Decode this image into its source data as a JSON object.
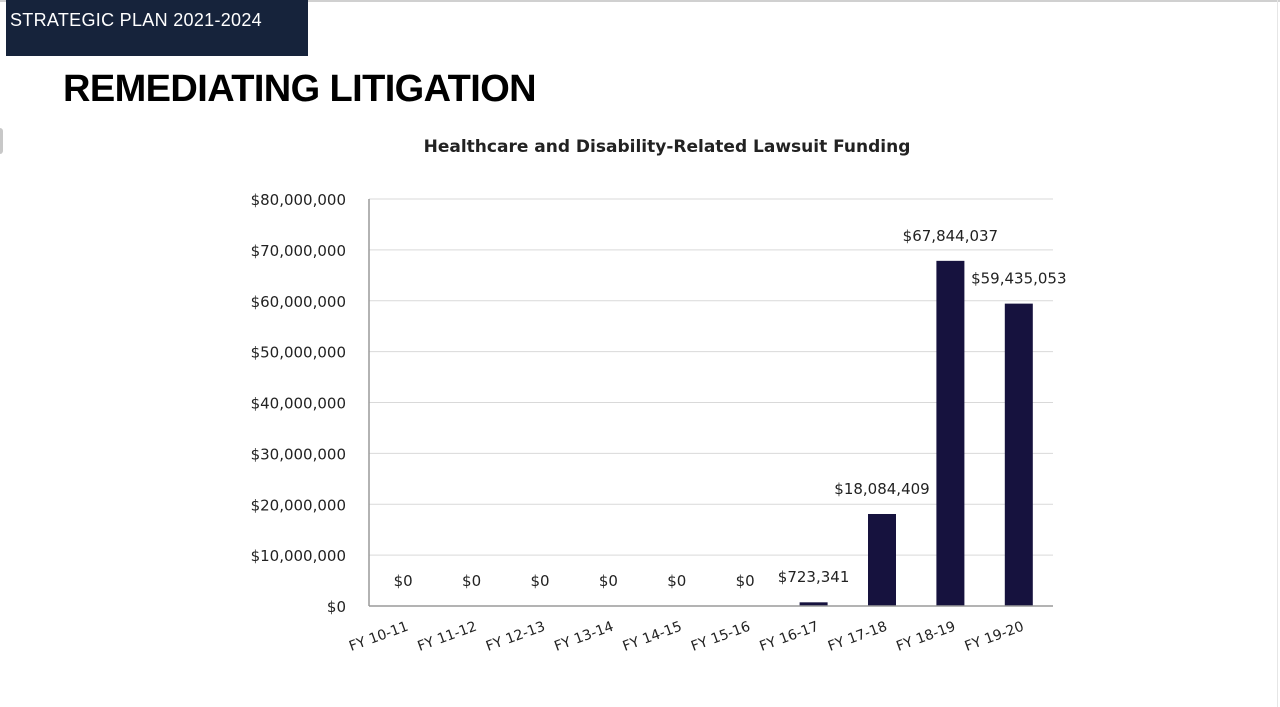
{
  "header": {
    "banner": "STRATEGIC PLAN 2021-2024",
    "title": "REMEDIATING LITIGATION"
  },
  "colors": {
    "banner_bg": "#16233b",
    "bar": "#16123e",
    "grid": "#d9d9d9",
    "axis": "#9a9a9a"
  },
  "chart_data": {
    "type": "bar",
    "title": "Healthcare and Disability-Related Lawsuit Funding",
    "categories": [
      "FY 10-11",
      "FY 11-12",
      "FY 12-13",
      "FY 13-14",
      "FY 14-15",
      "FY 15-16",
      "FY 16-17",
      "FY 17-18",
      "FY 18-19",
      "FY 19-20"
    ],
    "values": [
      0,
      0,
      0,
      0,
      0,
      0,
      723341,
      18084409,
      67844037,
      59435053
    ],
    "data_labels": [
      "$0",
      "$0",
      "$0",
      "$0",
      "$0",
      "$0",
      "$723,341",
      "$18,084,409",
      "$67,844,037",
      "$59,435,053"
    ],
    "ylim": [
      0,
      80000000
    ],
    "yticks": [
      0,
      10000000,
      20000000,
      30000000,
      40000000,
      50000000,
      60000000,
      70000000,
      80000000
    ],
    "ytick_labels": [
      "$0",
      "$10,000,000",
      "$20,000,000",
      "$30,000,000",
      "$40,000,000",
      "$50,000,000",
      "$60,000,000",
      "$70,000,000",
      "$80,000,000"
    ],
    "xlabel": "",
    "ylabel": "",
    "grid": true,
    "legend": false
  }
}
